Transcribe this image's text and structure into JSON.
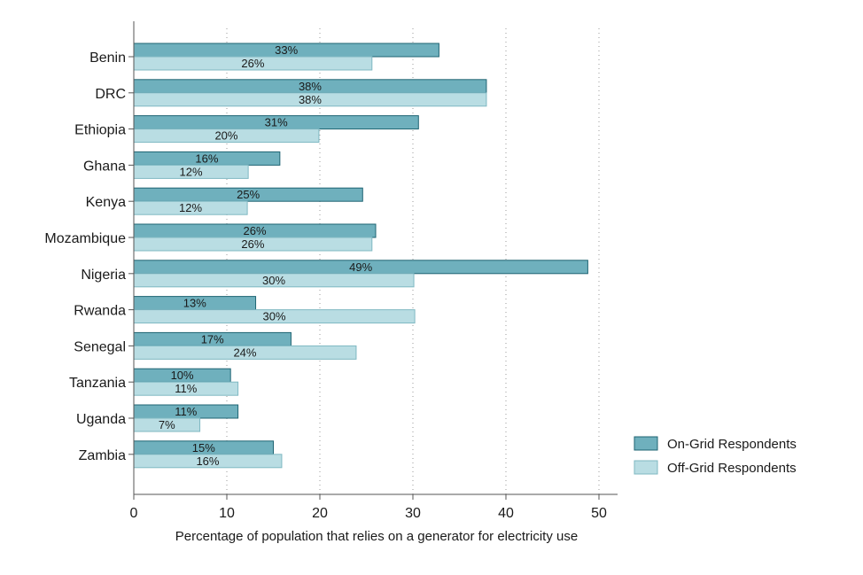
{
  "chart_data": {
    "type": "bar",
    "orientation": "horizontal",
    "categories": [
      "Benin",
      "DRC",
      "Ethiopia",
      "Ghana",
      "Kenya",
      "Mozambique",
      "Nigeria",
      "Rwanda",
      "Senegal",
      "Tanzania",
      "Uganda",
      "Zambia"
    ],
    "series": [
      {
        "name": "On-Grid Respondents",
        "color": "#6fb0bd",
        "values": [
          32.8,
          37.9,
          30.6,
          15.7,
          24.6,
          26.0,
          48.8,
          13.1,
          16.9,
          10.4,
          11.2,
          15.0
        ],
        "labels": [
          "33%",
          "38%",
          "31%",
          "16%",
          "25%",
          "26%",
          "49%",
          "13%",
          "17%",
          "10%",
          "11%",
          "15%"
        ]
      },
      {
        "name": "Off-Grid Respondents",
        "color": "#b9dde3",
        "values": [
          25.6,
          37.9,
          19.9,
          12.3,
          12.2,
          25.6,
          30.1,
          30.2,
          23.9,
          11.2,
          7.1,
          15.9
        ],
        "labels": [
          "26%",
          "38%",
          "20%",
          "12%",
          "12%",
          "26%",
          "30%",
          "30%",
          "24%",
          "11%",
          "7%",
          "16%"
        ]
      }
    ],
    "xlabel": "Percentage of population that relies on a generator for electricity use",
    "ylabel": "",
    "xlim": [
      0,
      52
    ],
    "xticks": [
      0,
      10,
      20,
      30,
      40,
      50
    ],
    "xtick_labels": [
      "0",
      "10",
      "20",
      "30",
      "40",
      "50"
    ],
    "grid": "vertical dotted",
    "legend_position": "right"
  }
}
